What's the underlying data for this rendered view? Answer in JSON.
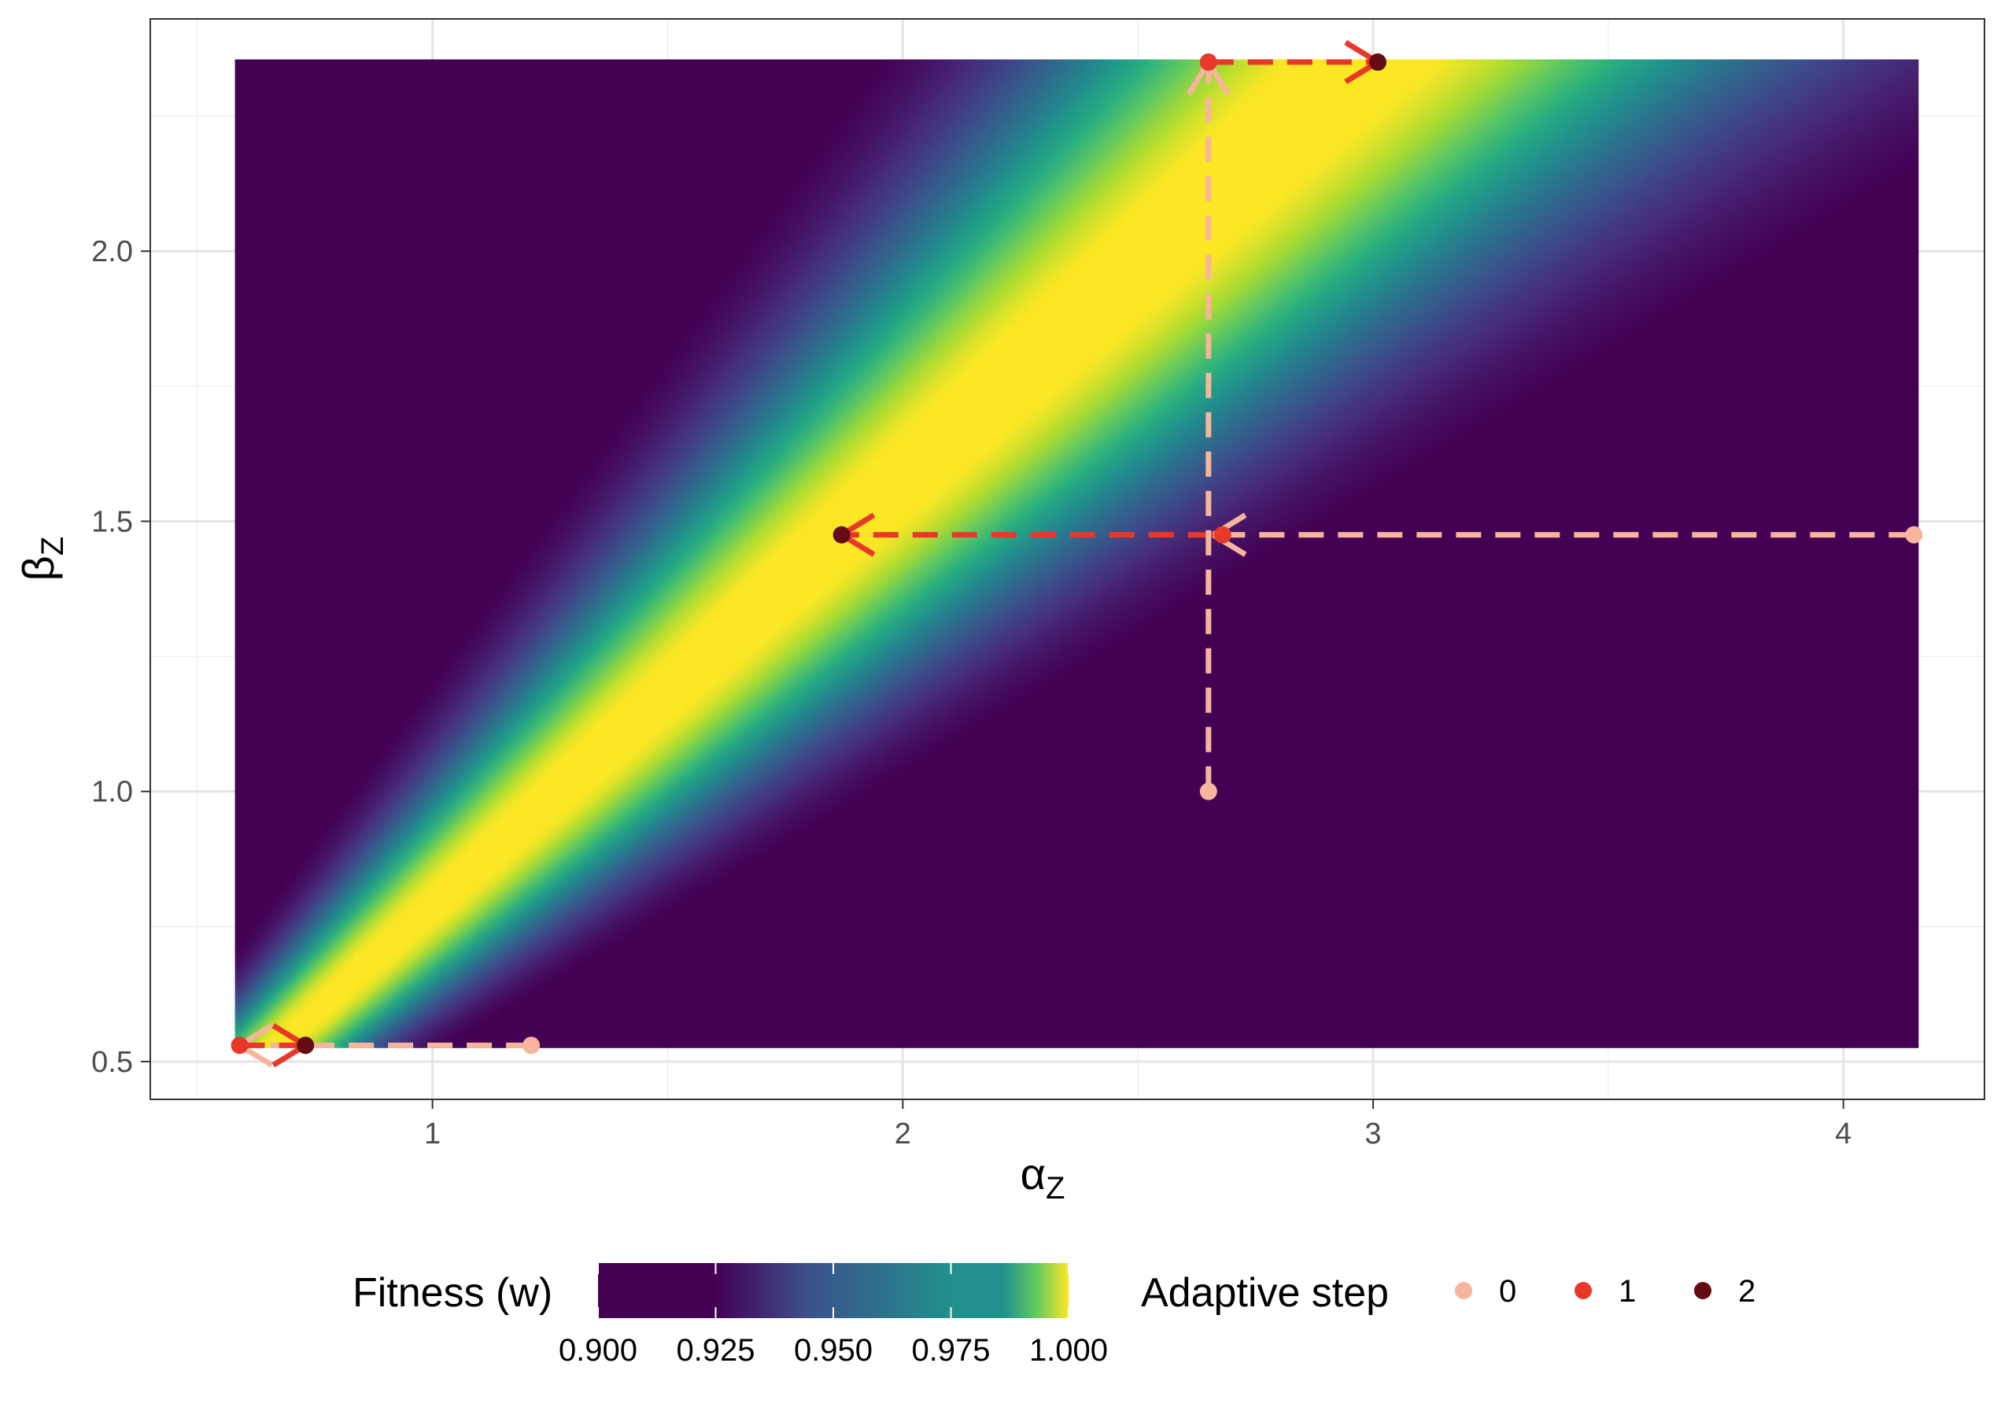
{
  "chart_data": {
    "type": "heatmap",
    "xlabel": "α",
    "xlabel_sub": "Z",
    "ylabel": "β",
    "ylabel_sub": "Z",
    "x_ticks": [
      1,
      2,
      3,
      4
    ],
    "x_tick_labels": [
      "1",
      "2",
      "3",
      "4"
    ],
    "y_ticks": [
      0.5,
      1.0,
      1.5,
      2.0
    ],
    "y_tick_labels": [
      "0.5",
      "1.0",
      "1.5",
      "2.0"
    ],
    "xlim": [
      0.4,
      4.3
    ],
    "ylim": [
      0.43,
      2.43
    ],
    "heatmap_extent": {
      "x": [
        0.58,
        4.16
      ],
      "y": [
        0.525,
        2.355
      ]
    },
    "grid": true,
    "fill": {
      "name": "Fitness (w)",
      "scale": "viridis",
      "range": [
        0.9,
        1.0
      ],
      "breaks": [
        0.9,
        0.925,
        0.95,
        0.975,
        1.0
      ],
      "break_labels": [
        "0.900",
        "0.925",
        "0.950",
        "0.975",
        "1.000"
      ],
      "optimum_beta_over_alpha": 0.79
    },
    "legend": {
      "position": "bottom"
    },
    "step_legend": {
      "title": "Adaptive step",
      "labels": [
        "0",
        "1",
        "2"
      ],
      "colors": [
        "#f7b59c",
        "#e8382a",
        "#650b12"
      ]
    },
    "arrows": [
      {
        "step": 0,
        "from": [
          1.21,
          0.53
        ],
        "to": [
          0.59,
          0.53
        ]
      },
      {
        "step": 1,
        "from": [
          0.59,
          0.53
        ],
        "to": [
          0.73,
          0.53
        ]
      },
      {
        "step": 0,
        "from": [
          4.15,
          1.475
        ],
        "to": [
          2.66,
          1.475
        ]
      },
      {
        "step": 1,
        "from": [
          2.66,
          1.475
        ],
        "to": [
          1.87,
          1.475
        ]
      },
      {
        "step": 0,
        "from": [
          2.65,
          1.0
        ],
        "to": [
          2.65,
          2.35
        ]
      },
      {
        "step": 1,
        "from": [
          2.65,
          2.35
        ],
        "to": [
          3.01,
          2.35
        ]
      }
    ],
    "points": [
      {
        "step": 0,
        "x": 1.21,
        "y": 0.53
      },
      {
        "step": 1,
        "x": 0.59,
        "y": 0.53
      },
      {
        "step": 2,
        "x": 0.73,
        "y": 0.53
      },
      {
        "step": 0,
        "x": 4.15,
        "y": 1.475
      },
      {
        "step": 1,
        "x": 2.68,
        "y": 1.475
      },
      {
        "step": 2,
        "x": 1.87,
        "y": 1.475
      },
      {
        "step": 0,
        "x": 2.65,
        "y": 1.0
      },
      {
        "step": 1,
        "x": 2.65,
        "y": 2.35
      },
      {
        "step": 2,
        "x": 3.01,
        "y": 2.35
      }
    ]
  }
}
